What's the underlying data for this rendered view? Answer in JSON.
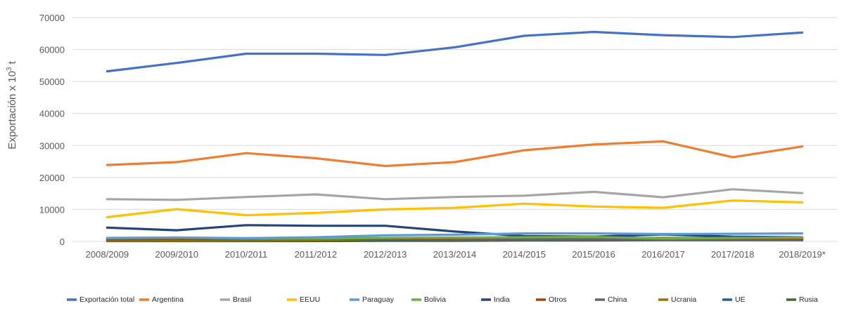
{
  "chart_data": {
    "type": "line",
    "title": "",
    "ylabel": "Exportación x 10",
    "ylabel_sup": "3",
    "ylabel_unit": " t",
    "xlabel": "",
    "ylim": [
      0,
      70000
    ],
    "yticks": [
      0,
      10000,
      20000,
      30000,
      40000,
      50000,
      60000,
      70000
    ],
    "ytick_labels": [
      "0",
      "10000",
      "20000",
      "30000",
      "40000",
      "50000",
      "60000",
      "70000"
    ],
    "grid": true,
    "legend_position": "bottom",
    "categories": [
      "2008/2009",
      "2009/2010",
      "2010/2011",
      "2011/2012",
      "2012/2013",
      "2013/2014",
      "2014/2015",
      "2015/2016",
      "2016/2017",
      "2017/2018",
      "2018/2019*"
    ],
    "series": [
      {
        "name": "Exportación total",
        "color": "#4472C4",
        "values": [
          53200,
          55800,
          58700,
          58700,
          58300,
          60700,
          64300,
          65500,
          64500,
          63900,
          65300
        ]
      },
      {
        "name": "Argentina",
        "color": "#ED7D31",
        "values": [
          23900,
          24800,
          27600,
          26000,
          23600,
          24800,
          28500,
          30300,
          31300,
          26300,
          29700
        ]
      },
      {
        "name": "Brasil",
        "color": "#A5A5A5",
        "values": [
          13200,
          13000,
          13900,
          14700,
          13200,
          13900,
          14300,
          15500,
          13800,
          16300,
          15100
        ]
      },
      {
        "name": "EEUU",
        "color": "#FFC000",
        "values": [
          7600,
          10100,
          8200,
          8900,
          10000,
          10500,
          11800,
          10900,
          10500,
          12800,
          12200
        ]
      },
      {
        "name": "Paraguay",
        "color": "#5B9BD5",
        "values": [
          1100,
          1200,
          1000,
          1300,
          1900,
          2100,
          2500,
          2500,
          2300,
          2400,
          2500
        ]
      },
      {
        "name": "Bolivia",
        "color": "#70AD47",
        "values": [
          1000,
          1200,
          900,
          900,
          1100,
          1200,
          1300,
          1400,
          900,
          1100,
          1200
        ]
      },
      {
        "name": "India",
        "color": "#264478",
        "values": [
          4300,
          3500,
          5100,
          4900,
          4900,
          3100,
          1700,
          1500,
          2200,
          1500,
          1300
        ]
      },
      {
        "name": "Otros",
        "color": "#9E480E",
        "values": [
          600,
          700,
          700,
          800,
          900,
          1100,
          1300,
          1500,
          900,
          1000,
          1000
        ]
      },
      {
        "name": "China",
        "color": "#636363",
        "values": [
          900,
          1000,
          800,
          800,
          700,
          600,
          600,
          600,
          600,
          600,
          600
        ]
      },
      {
        "name": "Ucrania",
        "color": "#997300",
        "values": [
          300,
          300,
          400,
          500,
          700,
          800,
          900,
          1000,
          1100,
          1100,
          1100
        ]
      },
      {
        "name": "UE",
        "color": "#255E91",
        "values": [
          500,
          500,
          500,
          500,
          500,
          500,
          500,
          500,
          500,
          500,
          500
        ]
      },
      {
        "name": "Rusia",
        "color": "#43682B",
        "values": [
          100,
          100,
          100,
          100,
          200,
          200,
          300,
          300,
          400,
          400,
          400
        ]
      }
    ]
  }
}
